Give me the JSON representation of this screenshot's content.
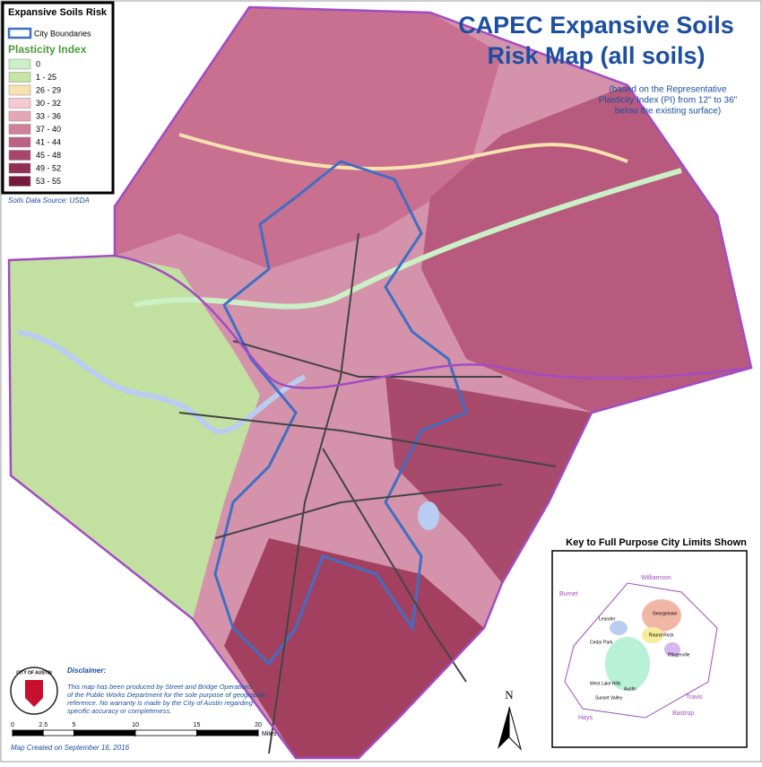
{
  "title": [
    "CAPEC Expansive Soils",
    "Risk Map (all soils)"
  ],
  "subtitle": [
    "(based on the Representative",
    "Plasticity Index (PI) from 12\" to 36\"",
    "below the existing surface)"
  ],
  "legend": {
    "title": "Expansive Soils Risk",
    "boundary_label": "City Boundaries",
    "heading": "Plasticity Index",
    "classes": [
      {
        "label": "0",
        "color": "#ccf0c6"
      },
      {
        "label": "1 - 25",
        "color": "#c6e4a2"
      },
      {
        "label": "26 - 29",
        "color": "#f8e2b0"
      },
      {
        "label": "30 - 32",
        "color": "#f5c8d2"
      },
      {
        "label": "33 - 36",
        "color": "#e4a6b9"
      },
      {
        "label": "37 - 40",
        "color": "#d18099"
      },
      {
        "label": "41 - 44",
        "color": "#bd6282"
      },
      {
        "label": "45 - 48",
        "color": "#a8466a"
      },
      {
        "label": "49 - 52",
        "color": "#922f55"
      },
      {
        "label": "53 - 55",
        "color": "#761a3e"
      }
    ],
    "source": "Soils Data Source: USDA"
  },
  "inset": {
    "title": "Key to Full Purpose City Limits Shown",
    "labels": [
      "Williamson",
      "Burnet",
      "Travis",
      "Hays",
      "Bastrop",
      "Leander",
      "Georgetown",
      "Round Rock",
      "Cedar Park",
      "Pflugerville",
      "Austin",
      "West Lake Hills",
      "Sunset Valley"
    ]
  },
  "disclaimer": {
    "heading": "Disclaimer:",
    "lines": [
      "This map has been produced by Street and Bridge Operations",
      "of the Public Works Department for the sole purpose of geographic",
      "reference. No warranty is made by the City of Austin regarding",
      "specific accuracy or completeness."
    ]
  },
  "scale": {
    "ticks": [
      0,
      2.5,
      5,
      10,
      15,
      20
    ],
    "unit": "Miles"
  },
  "north": "N",
  "seal": "CITY OF AUSTIN",
  "created": "Map Created on September 16, 2016"
}
